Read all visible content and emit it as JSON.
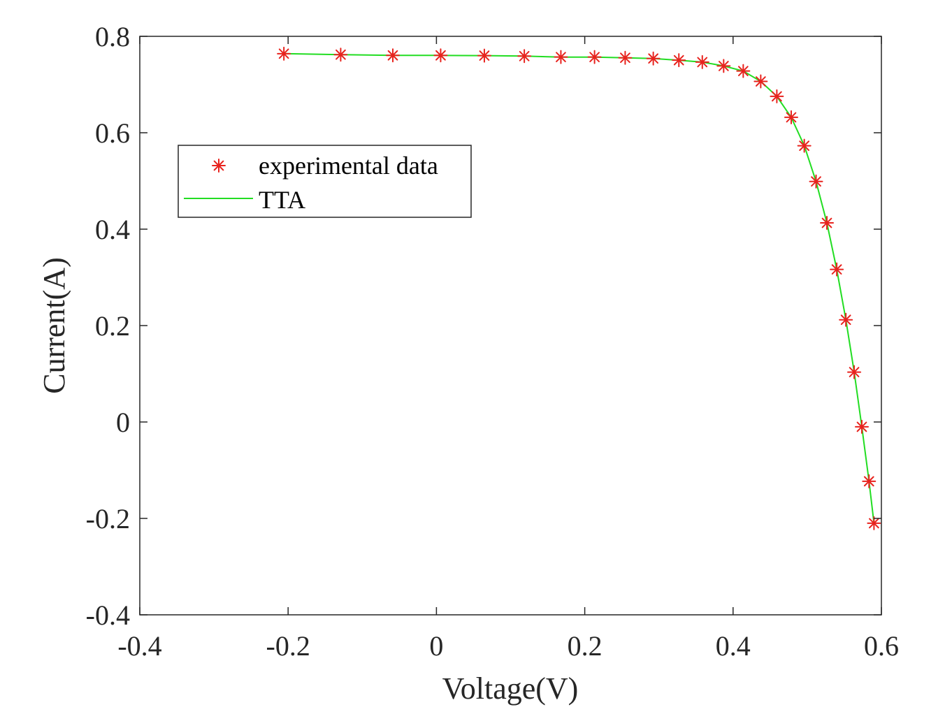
{
  "chart_data": {
    "type": "scatter",
    "title": "",
    "xlabel": "Voltage(V)",
    "ylabel": "Current(A)",
    "xlim": [
      -0.4,
      0.6
    ],
    "ylim": [
      -0.4,
      0.8
    ],
    "xticks": [
      "-0.4",
      "-0.2",
      "0",
      "0.2",
      "0.4",
      "0.6"
    ],
    "yticks": [
      "-0.4",
      "-0.2",
      "0",
      "0.2",
      "0.4",
      "0.6",
      "0.8"
    ],
    "xtick_values": [
      -0.4,
      -0.2,
      0,
      0.2,
      0.4,
      0.6
    ],
    "ytick_values": [
      -0.4,
      -0.2,
      0,
      0.2,
      0.4,
      0.6,
      0.8
    ],
    "grid": false,
    "legend_position": "upper-left",
    "series": [
      {
        "name": "experimental data",
        "kind": "markers",
        "marker": "asterisk",
        "color": "#e8231e",
        "x": [
          -0.2057,
          -0.1291,
          -0.0588,
          0.0057,
          0.0646,
          0.1185,
          0.1678,
          0.2132,
          0.2545,
          0.2924,
          0.3269,
          0.3585,
          0.3873,
          0.4137,
          0.4373,
          0.459,
          0.4784,
          0.496,
          0.5119,
          0.5265,
          0.5398,
          0.5521,
          0.5633,
          0.5736,
          0.5833,
          0.59
        ],
        "y": [
          0.764,
          0.762,
          0.7605,
          0.7605,
          0.76,
          0.759,
          0.757,
          0.757,
          0.7555,
          0.754,
          0.7505,
          0.7465,
          0.7385,
          0.728,
          0.7065,
          0.6755,
          0.632,
          0.573,
          0.499,
          0.413,
          0.3165,
          0.212,
          0.1035,
          -0.01,
          -0.123,
          -0.21
        ]
      },
      {
        "name": "TTA",
        "kind": "line",
        "color": "#22dd22",
        "x": [
          -0.2057,
          -0.1291,
          -0.0588,
          0.0057,
          0.0646,
          0.1185,
          0.1678,
          0.2132,
          0.2545,
          0.2924,
          0.3269,
          0.3585,
          0.3873,
          0.4137,
          0.4373,
          0.459,
          0.4784,
          0.496,
          0.5119,
          0.5265,
          0.5398,
          0.5521,
          0.5633,
          0.5736,
          0.5833,
          0.59
        ],
        "y": [
          0.764,
          0.762,
          0.7605,
          0.7605,
          0.76,
          0.759,
          0.757,
          0.757,
          0.7555,
          0.754,
          0.7505,
          0.7465,
          0.7385,
          0.728,
          0.7065,
          0.6755,
          0.632,
          0.573,
          0.499,
          0.413,
          0.3165,
          0.212,
          0.1035,
          -0.01,
          -0.123,
          -0.21
        ]
      }
    ]
  }
}
